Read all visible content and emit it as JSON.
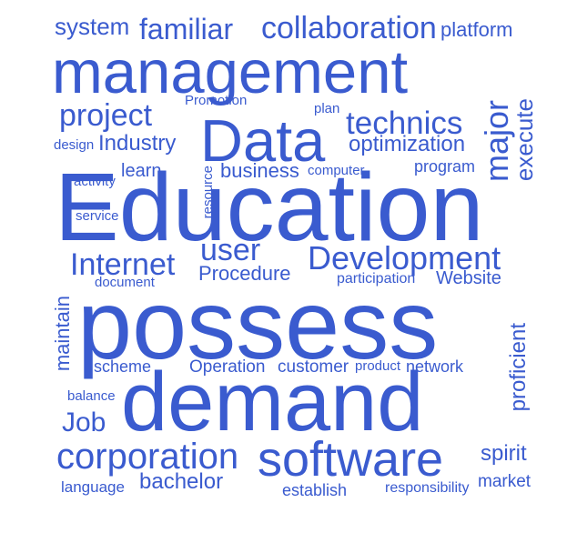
{
  "color": "#3a5bcf",
  "words": [
    "system",
    "familiar",
    "collaboration",
    "platform",
    "management",
    "Promotion",
    "plan",
    "project",
    "technics",
    "execute",
    "major",
    "Data",
    "design",
    "Industry",
    "optimization",
    "learn",
    "business",
    "computer",
    "program",
    "activity",
    "resource",
    "Education",
    "service",
    "user",
    "Internet",
    "Development",
    "Procedure",
    "document",
    "participation",
    "Website",
    "maintain",
    "possess",
    "proficient",
    "scheme",
    "Operation",
    "customer",
    "product",
    "network",
    "balance",
    "demand",
    "Job",
    "corporation",
    "software",
    "spirit",
    "bachelor",
    "market",
    "language",
    "establish",
    "responsibility"
  ]
}
